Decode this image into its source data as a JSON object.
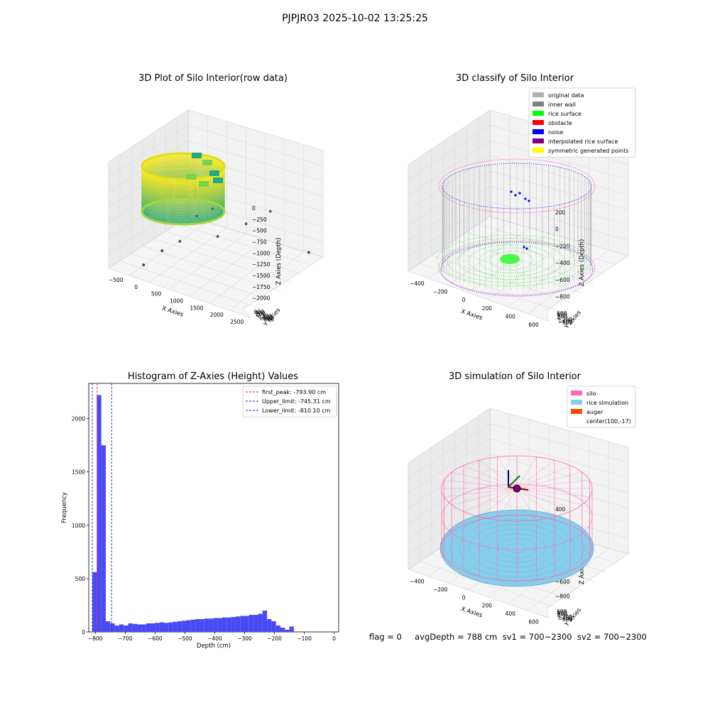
{
  "figure": {
    "suptitle": "PJPJR03 2025-10-02 13:25:25",
    "status_line": "flag = 0     avgDepth = 788 cm  sv1 = 700~2300  sv2 = 700~2300"
  },
  "colors": {
    "hist_bar": "#4a4af5",
    "first_peak": "#e02020",
    "limits": "#2020d0",
    "inner_wall": "#808080",
    "rice_surface": "#00ff00",
    "noise": "#0000ff",
    "silo": "#ff69b4",
    "rice_simulation": "#87ceeb",
    "auger": "#ff4500",
    "pane": "#f2f2f2",
    "grid": "#d9d9d9"
  },
  "chart_data": [
    {
      "type": "scatter",
      "subtype": "3d",
      "title": "3D Plot of Silo Interior(row data)",
      "xlabel": "X Axies",
      "ylabel": "Y Axies",
      "zlabel": "Z Axies (Depth)",
      "xticks": [
        "−500",
        "0",
        "500",
        "1000",
        "1500",
        "2000",
        "2500"
      ],
      "yticks": [
        "−800",
        "−600",
        "−400",
        "−200",
        "0",
        "200",
        "400",
        "600"
      ],
      "zticks": [
        "0",
        "−250",
        "−500",
        "−750",
        "−1000",
        "−1250",
        "−1500",
        "−1750",
        "−2000"
      ],
      "colormap": "viridis",
      "outlier_points": [
        {
          "x": 1900,
          "y": 200,
          "z": -1000
        },
        {
          "x": 900,
          "y": -100,
          "z": -1050
        },
        {
          "x": 700,
          "y": -250,
          "z": -1150
        },
        {
          "x": 1450,
          "y": 100,
          "z": -1300
        },
        {
          "x": 1250,
          "y": -300,
          "z": -1350
        },
        {
          "x": 600,
          "y": -500,
          "z": -1500
        },
        {
          "x": 2450,
          "y": 500,
          "z": -1800
        },
        {
          "x": 300,
          "y": -600,
          "z": -1700
        },
        {
          "x": 100,
          "y": -800,
          "z": -1900
        }
      ]
    },
    {
      "type": "scatter",
      "subtype": "3d",
      "title": "3D classify of Silo Interior",
      "xlabel": "X Axies",
      "ylabel": "Y Axies",
      "zlabel": "Z Axies (Depth)",
      "xticks": [
        "−400",
        "−200",
        "0",
        "200",
        "400",
        "600"
      ],
      "yticks": [
        "−600",
        "−400",
        "−200",
        "0",
        "200",
        "400",
        "600"
      ],
      "zticks": [
        "200",
        "0",
        "−200",
        "−400",
        "−600",
        "−800"
      ],
      "legend": [
        {
          "label": "original data",
          "color": "#b0b0b0"
        },
        {
          "label": "inner wall",
          "color": "#808080"
        },
        {
          "label": "rice surface",
          "color": "#00ff00"
        },
        {
          "label": "obstacle",
          "color": "#ff0000"
        },
        {
          "label": "noise",
          "color": "#0000ff"
        },
        {
          "label": "interpolated rice surface",
          "color": "#800080"
        },
        {
          "label": "symmetric generated points",
          "color": "#ffff00"
        }
      ],
      "legend_loc": "upper right"
    },
    {
      "type": "bar",
      "subtype": "histogram",
      "title": "Histogram of Z-Axies (Height) Values",
      "xlabel": "Depth (cm)",
      "ylabel": "Frequency",
      "xlim": [
        -822,
        15
      ],
      "ylim": [
        0,
        2330
      ],
      "xticks": [
        -800,
        -700,
        -600,
        -500,
        -400,
        -300,
        -200,
        -100,
        0
      ],
      "yticks": [
        0,
        500,
        1000,
        1500,
        2000
      ],
      "bin_width": 15,
      "bin_start": -810,
      "values": [
        560,
        2220,
        1750,
        100,
        80,
        60,
        70,
        60,
        80,
        75,
        70,
        70,
        80,
        80,
        85,
        90,
        85,
        90,
        95,
        100,
        105,
        110,
        115,
        120,
        120,
        125,
        125,
        130,
        130,
        135,
        135,
        140,
        145,
        150,
        150,
        160,
        160,
        170,
        200,
        120,
        100,
        60,
        40,
        20,
        50,
        0
      ],
      "lines": [
        {
          "label": "first_peak: -793.90 cm",
          "x": -793.9,
          "style": "red"
        },
        {
          "label": "Upper_limit: -745.31 cm",
          "x": -745.31,
          "style": "blue"
        },
        {
          "label": "Lower_limit: -810.10 cm",
          "x": -810.1,
          "style": "blue"
        }
      ],
      "legend_loc": "upper right"
    },
    {
      "type": "scatter",
      "subtype": "3d",
      "title": "3D simulation of Silo Interior",
      "xlabel": "X Axies",
      "ylabel": "Y Axies",
      "zlabel": "Z Axies (Depth)",
      "xticks": [
        "−400",
        "−200",
        "0",
        "200",
        "400",
        "600"
      ],
      "yticks": [
        "−600",
        "−400",
        "−200",
        "0",
        "200",
        "400",
        "600"
      ],
      "zticks": [
        "400",
        "200",
        "0",
        "−200",
        "−400",
        "−600",
        "−800"
      ],
      "legend": [
        {
          "label": "silo",
          "color": "#ff69b4"
        },
        {
          "label": "rice simulation",
          "color": "#87ceeb"
        },
        {
          "label": "auger",
          "color": "#ff4500"
        },
        {
          "label": "center(100,-17)",
          "color": "none"
        }
      ],
      "legend_loc": "upper right"
    }
  ]
}
